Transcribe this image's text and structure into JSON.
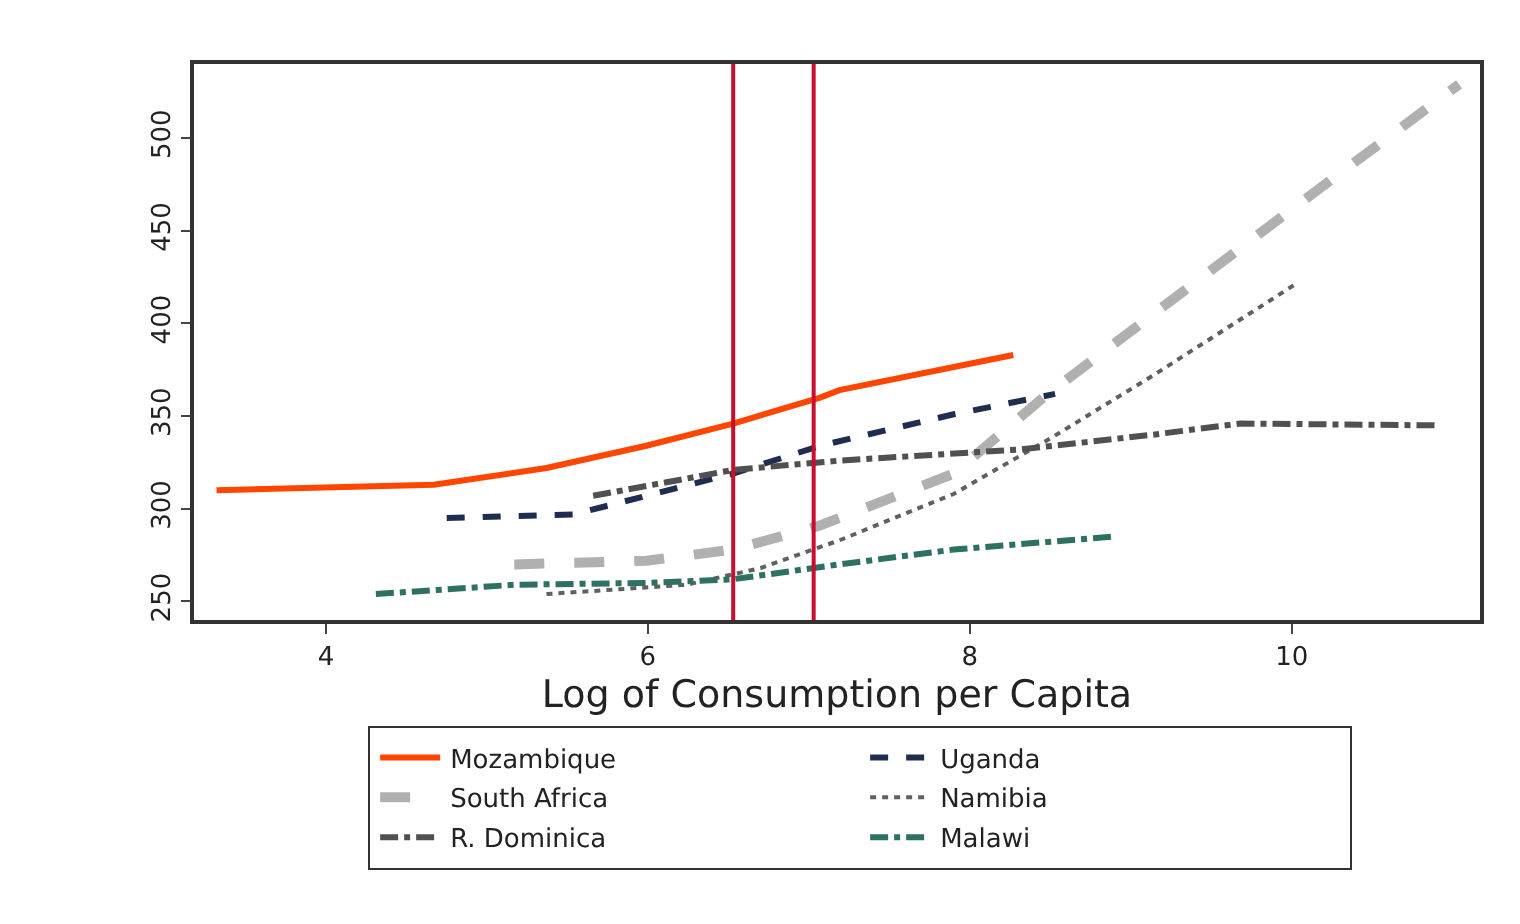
{
  "chart_data": {
    "type": "line",
    "xlabel": "Log of Consumption per Capita",
    "xlim": [
      3.18,
      11.17
    ],
    "xticks": [
      4,
      6,
      8,
      10
    ],
    "ylim": [
      240,
      540
    ],
    "yticks": [
      250,
      300,
      350,
      400,
      450,
      500
    ],
    "grid": false,
    "legend": "bottom",
    "marker": "none",
    "ref_lines": [
      {
        "axis": "x",
        "value": 6.53,
        "color": "#c8102e"
      },
      {
        "axis": "x",
        "value": 7.03,
        "color": "#c8102e"
      }
    ],
    "series": [
      {
        "name": "Mozambique",
        "color": "#ff4500",
        "line_style": "solid",
        "x": [
          3.32,
          4.67,
          5.37,
          5.99,
          6.53,
          7.07,
          7.19,
          8.27
        ],
        "values": [
          310,
          313,
          322,
          334,
          346,
          360,
          364,
          383
        ]
      },
      {
        "name": "Uganda",
        "color": "#1f2d50",
        "line_style": "dashed",
        "x": [
          4.75,
          5.54,
          5.99,
          6.53,
          7.07,
          7.9,
          8.53
        ],
        "values": [
          295,
          297,
          307,
          319,
          334,
          351,
          362
        ]
      },
      {
        "name": "South Africa",
        "color": "#b0b0b0",
        "line_style": "dashed",
        "x": [
          5.17,
          5.99,
          6.53,
          7.07,
          7.9,
          8.47,
          9.14,
          9.96,
          11.04
        ],
        "values": [
          270,
          272,
          278,
          291,
          319,
          361,
          405,
          459,
          529
        ]
      },
      {
        "name": "Namibia",
        "color": "#606060",
        "line_style": "dotted",
        "x": [
          5.37,
          6.24,
          6.7,
          7.19,
          7.9,
          8.52,
          9.14,
          10.02
        ],
        "values": [
          254,
          259,
          268,
          283,
          308,
          339,
          372,
          421
        ]
      },
      {
        "name": "R. Dominica",
        "color": "#505050",
        "line_style": "dashdot",
        "x": [
          5.66,
          6.53,
          7.19,
          8.31,
          9.14,
          9.68,
          10.92
        ],
        "values": [
          307,
          321,
          326,
          332,
          340,
          346,
          345
        ]
      },
      {
        "name": "Malawi",
        "color": "#2e7062",
        "line_style": "dashdot",
        "x": [
          4.31,
          5.17,
          5.99,
          6.53,
          7.19,
          7.9,
          8.89
        ],
        "values": [
          254,
          259,
          260,
          262,
          270,
          278,
          285
        ]
      }
    ]
  }
}
